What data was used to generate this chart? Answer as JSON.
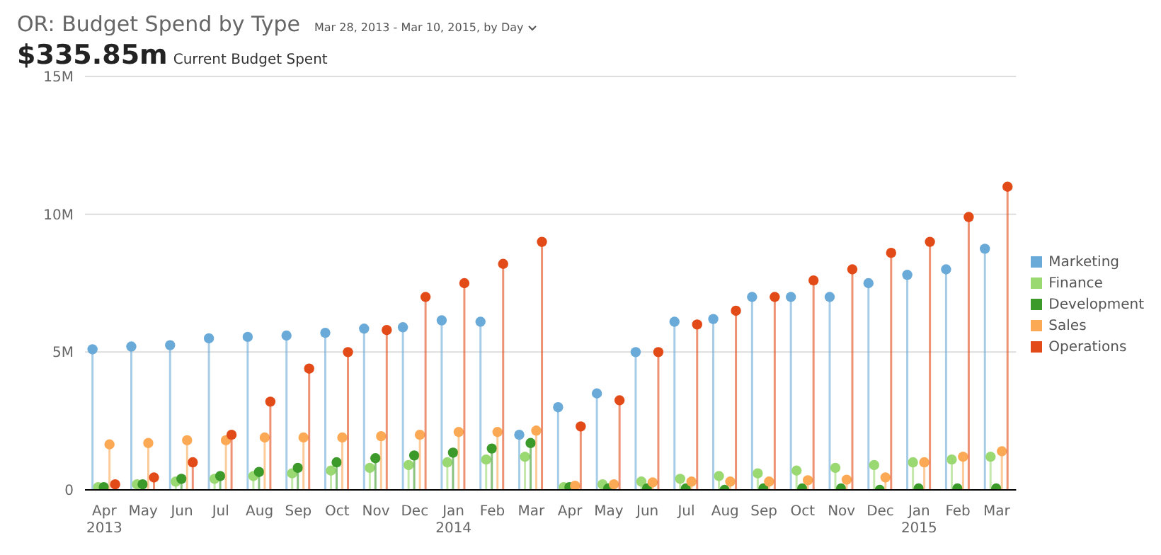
{
  "chart_data": {
    "type": "lollipop",
    "title": "OR: Budget Spend by Type",
    "subtitle": "Mar 28, 2013 - Mar 10, 2015, by Day",
    "annotations": [
      "$335.85m",
      "Current Budget Spent"
    ],
    "categories": [
      "Apr 2013",
      "May",
      "Jun",
      "Jul",
      "Aug",
      "Sep",
      "Oct",
      "Nov",
      "Dec",
      "Jan 2014",
      "Feb",
      "Mar",
      "Apr",
      "May",
      "Jun",
      "Jul",
      "Aug",
      "Sep",
      "Oct",
      "Nov",
      "Dec",
      "Jan 2015",
      "Feb",
      "Mar"
    ],
    "series": [
      {
        "name": "Marketing",
        "color": "#6aaad8",
        "values": [
          5.1,
          5.2,
          5.25,
          5.5,
          5.55,
          5.6,
          5.7,
          5.85,
          5.9,
          6.15,
          6.1,
          2.0,
          3.0,
          3.5,
          5.0,
          6.1,
          6.2,
          7.0,
          7.0,
          7.0,
          7.5,
          7.8,
          8.0,
          8.75
        ]
      },
      {
        "name": "Finance",
        "color": "#9ad872",
        "values": [
          0.1,
          0.2,
          0.3,
          0.4,
          0.5,
          0.6,
          0.7,
          0.8,
          0.9,
          1.0,
          1.1,
          1.2,
          0.1,
          0.2,
          0.3,
          0.4,
          0.5,
          0.6,
          0.7,
          0.8,
          0.9,
          1.0,
          1.1,
          1.2
        ]
      },
      {
        "name": "Development",
        "color": "#3c9a2a",
        "values": [
          0.1,
          0.2,
          0.4,
          0.5,
          0.65,
          0.8,
          1.0,
          1.15,
          1.25,
          1.35,
          1.5,
          1.7,
          0.1,
          0.05,
          0.05,
          0.05,
          0.0,
          0.05,
          0.05,
          0.05,
          0.0,
          0.05,
          0.05,
          0.05
        ]
      },
      {
        "name": "Sales",
        "color": "#fca955",
        "values": [
          1.65,
          1.7,
          1.8,
          1.8,
          1.9,
          1.9,
          1.9,
          1.95,
          2.0,
          2.1,
          2.1,
          2.15,
          0.15,
          0.2,
          0.27,
          0.3,
          0.3,
          0.3,
          0.35,
          0.37,
          0.45,
          1.0,
          1.2,
          1.4
        ]
      },
      {
        "name": "Operations",
        "color": "#e24a17",
        "values": [
          0.2,
          0.45,
          1.0,
          2.0,
          3.2,
          4.4,
          5.0,
          5.8,
          7.0,
          7.5,
          8.2,
          9.0,
          2.3,
          3.25,
          5.0,
          6.0,
          6.5,
          7.0,
          7.6,
          8.0,
          8.6,
          9.0,
          9.9,
          11.0
        ]
      }
    ],
    "ylim": [
      0,
      15
    ],
    "yticks": [
      0,
      {
        "value": 5,
        "label": "5M"
      },
      {
        "value": 10,
        "label": "10M"
      },
      {
        "value": 15,
        "label": "15M"
      }
    ],
    "grid": "y",
    "legend": "right",
    "marker": "circle"
  }
}
